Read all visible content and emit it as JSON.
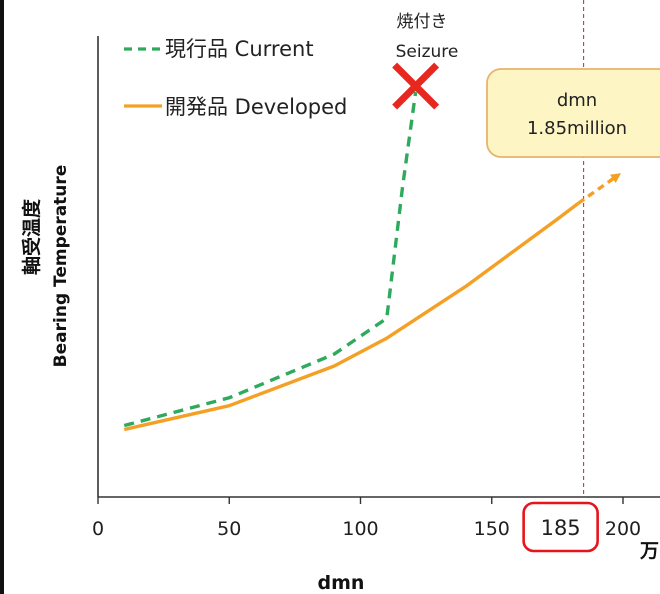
{
  "chart_data": {
    "type": "line",
    "xlabel": "dmn",
    "x_unit": "万",
    "ylabel_jp": "軸受温度",
    "ylabel_en": "Bearing Temperature",
    "xlim": [
      0,
      200
    ],
    "x_ticks": [
      0,
      50,
      100,
      150,
      200
    ],
    "highlight_x": 185,
    "highlight_label": "185",
    "grid": false,
    "legend_position": "top-left",
    "series": [
      {
        "name": "現行品 Current",
        "style": "dashed",
        "color": "#2eaa5c",
        "x": [
          10,
          50,
          90,
          110,
          116,
          121
        ],
        "y": [
          0.18,
          0.25,
          0.36,
          0.45,
          0.78,
          1.02
        ]
      },
      {
        "name": "開発品 Developed",
        "style": "solid",
        "color": "#f4a024",
        "x": [
          10,
          50,
          90,
          110,
          140,
          175,
          183,
          198
        ],
        "y": [
          0.17,
          0.23,
          0.33,
          0.4,
          0.53,
          0.7,
          0.74,
          0.81
        ],
        "extension_start_x": 183
      }
    ],
    "annotations": {
      "seizure_jp": "焼付き",
      "seizure_en": "Seizure",
      "callout_line1": "dmn",
      "callout_line2": "1.85million"
    }
  },
  "colors": {
    "current": "#2eaa5c",
    "developed": "#f4a024",
    "seizure_x": "#e8271f",
    "highlight_box": "#e8141c",
    "limit_line": "#cc2222",
    "callout_fill": "#fdf5c4",
    "callout_border": "#e8b36c"
  }
}
